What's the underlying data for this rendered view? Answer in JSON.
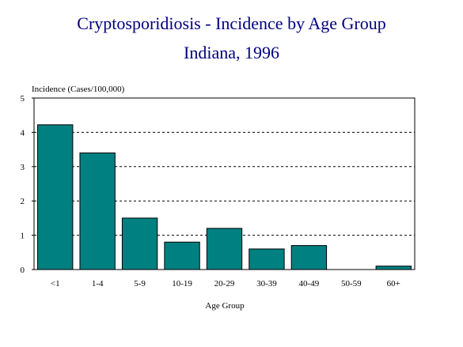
{
  "chart_data": {
    "type": "bar",
    "title": "Cryptosporidiosis - Incidence by Age Group",
    "subtitle": "Indiana, 1996",
    "xlabel": "Age Group",
    "ylabel": "Incidence (Cases/100,000)",
    "categories": [
      "<1",
      "1-4",
      "5-9",
      "10-19",
      "20-29",
      "30-39",
      "40-49",
      "50-59",
      "60+"
    ],
    "values": [
      4.22,
      3.4,
      1.5,
      0.8,
      1.2,
      0.6,
      0.7,
      0.0,
      0.1
    ],
    "ylim": [
      0,
      5
    ],
    "yticks": [
      "0",
      "1",
      "2",
      "3",
      "4",
      "5"
    ],
    "grid": "horizontal dashed",
    "legend": "none",
    "bar_color": "#008080",
    "title_color": "#000080"
  }
}
